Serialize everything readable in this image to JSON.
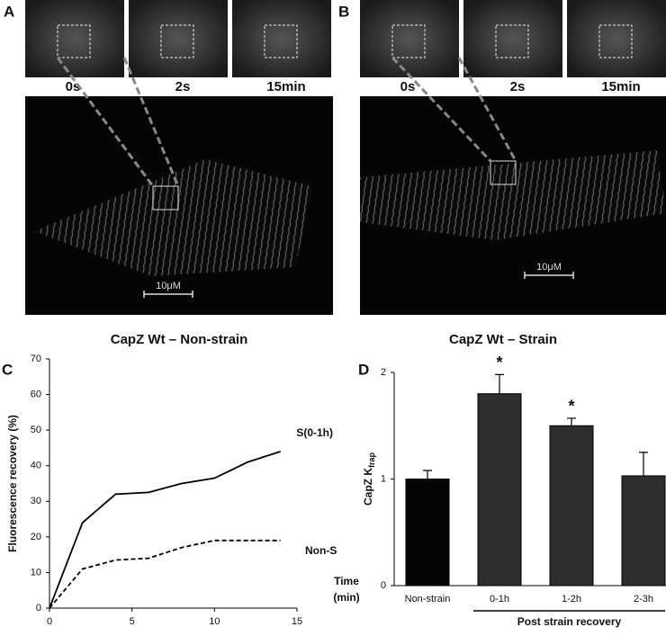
{
  "panels": [
    {
      "label": "A",
      "thumbs": [
        "0s",
        "2s",
        "15min"
      ],
      "scale": "10μM",
      "caption": "CapZ Wt – Non-strain"
    },
    {
      "label": "B",
      "thumbs": [
        "0s",
        "2s",
        "15min"
      ],
      "scale": "10μM",
      "caption": "CapZ Wt – Strain"
    }
  ],
  "chart_data": [
    {
      "type": "line",
      "panel_label": "C",
      "ylabel": "Fluorescence recovery (%)",
      "xlabel": [
        "Time",
        "(min)"
      ],
      "x": [
        0,
        2,
        4,
        6,
        8,
        10,
        12,
        14
      ],
      "series": [
        {
          "name": "S(0-1h)",
          "color": "#000000",
          "linestyle": "solid",
          "values": [
            0,
            24,
            32,
            32.5,
            35,
            36.5,
            41,
            44
          ]
        },
        {
          "name": "Non-S",
          "color": "#000000",
          "linestyle": "dashed",
          "values": [
            0,
            11,
            13.5,
            14,
            17,
            19,
            19,
            19
          ]
        }
      ],
      "xlim": [
        0,
        15
      ],
      "xticks": [
        0,
        5,
        10,
        15
      ],
      "ylim": [
        0,
        70
      ],
      "yticks": [
        0,
        10,
        20,
        30,
        40,
        50,
        60,
        70
      ]
    },
    {
      "type": "bar",
      "panel_label": "D",
      "ylabel": "CapZ K",
      "ylabel_subscript": "frap",
      "categories": [
        "Non-strain",
        "0-1h",
        "1-2h",
        "2-3h"
      ],
      "values": [
        1.0,
        1.8,
        1.5,
        1.03
      ],
      "errors": [
        0.08,
        0.18,
        0.07,
        0.22
      ],
      "colors": [
        "#050505",
        "#2d2d2d",
        "#2d2d2d",
        "#2d2d2d"
      ],
      "annotations": [
        {
          "category": "0-1h",
          "text": "*"
        },
        {
          "category": "1-2h",
          "text": "*"
        }
      ],
      "group_label": {
        "text": "Post strain recovery",
        "categories": [
          "0-1h",
          "1-2h",
          "2-3h"
        ]
      },
      "ylim": [
        0,
        2
      ],
      "yticks": [
        0,
        1,
        2
      ]
    }
  ]
}
